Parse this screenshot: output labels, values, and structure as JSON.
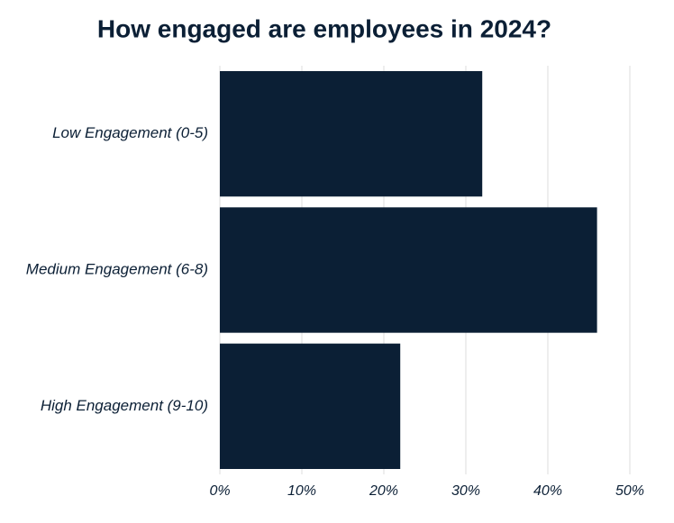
{
  "chart_data": {
    "type": "bar",
    "orientation": "horizontal",
    "title": "How engaged are employees in 2024?",
    "categories": [
      "Low Engagement (0-5)",
      "Medium Engagement (6-8)",
      "High Engagement (9-10)"
    ],
    "values": [
      32,
      46,
      22
    ],
    "color": "#0b1f35",
    "xlim": [
      0,
      50
    ],
    "xticks": [
      {
        "value": 0,
        "label": "0%"
      },
      {
        "value": 10,
        "label": "10%"
      },
      {
        "value": 20,
        "label": "20%"
      },
      {
        "value": 30,
        "label": "30%"
      },
      {
        "value": 40,
        "label": "40%"
      },
      {
        "value": 50,
        "label": "50%"
      }
    ],
    "grid": true
  }
}
